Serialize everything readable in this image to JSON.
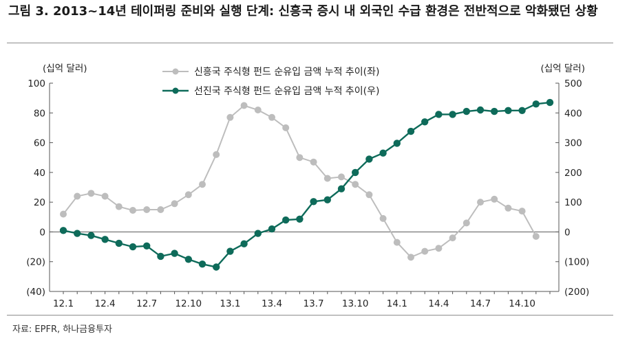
{
  "title": "그림 3. 2013~14년 테이퍼링 준비와 실행 단계: 신흥국 증시 내 외국인 수급 환경은 전반적으로 악화됐던 상황",
  "source": "자료: EPFR, 하나금융투자",
  "colors": {
    "series1": "#bdbdbd",
    "series2": "#0e6b5a"
  },
  "chart_data": {
    "type": "line",
    "title": "",
    "left_unit": "(십억 달러)",
    "right_unit": "(십억 달러)",
    "legend_position": "top-center",
    "grid": false,
    "x_tick_labels": [
      "12.1",
      "12.4",
      "12.7",
      "12.10",
      "13.1",
      "13.4",
      "13.7",
      "13.10",
      "14.1",
      "14.4",
      "14.7",
      "14.10"
    ],
    "left_axis": {
      "min": -40,
      "max": 100,
      "ticks": [
        100,
        80,
        60,
        40,
        20,
        0,
        -20,
        -40
      ],
      "tick_labels": [
        "100",
        "80",
        "60",
        "40",
        "20",
        "0",
        "(20)",
        "(40)"
      ]
    },
    "right_axis": {
      "min": -200,
      "max": 500,
      "ticks": [
        500,
        400,
        300,
        200,
        100,
        0,
        -100,
        -200
      ],
      "tick_labels": [
        "500",
        "400",
        "300",
        "200",
        "100",
        "0",
        "(100)",
        "(200)"
      ]
    },
    "categories": [
      "12.1",
      "12.2",
      "12.3",
      "12.4",
      "12.5",
      "12.6",
      "12.7",
      "12.8",
      "12.9",
      "12.10",
      "12.11",
      "12.12",
      "13.1",
      "13.2",
      "13.3",
      "13.4",
      "13.5",
      "13.6",
      "13.7",
      "13.8",
      "13.9",
      "13.10",
      "13.11",
      "13.12",
      "14.1",
      "14.2",
      "14.3",
      "14.4",
      "14.5",
      "14.6",
      "14.7",
      "14.8",
      "14.9",
      "14.10",
      "14.11",
      "14.12"
    ],
    "series": [
      {
        "name": "신흥국 주식형 펀드 순유입 금액 누적 추이(좌)",
        "axis": "left",
        "values": [
          12,
          24,
          26,
          24,
          17,
          14.5,
          15,
          15,
          19,
          25,
          32,
          52,
          77,
          85,
          82,
          77,
          70,
          50,
          47,
          36,
          37,
          32,
          25,
          9,
          -7,
          -17,
          -13,
          -11,
          -4,
          6,
          20,
          22,
          16,
          14,
          -3,
          null
        ]
      },
      {
        "name": "선진국 주식형 펀드 순유입 금액 누적 추이(우)",
        "axis": "right",
        "values": [
          5,
          -5,
          -12,
          -25,
          -38,
          -50,
          -47,
          -82,
          -72,
          -92,
          -108,
          -118,
          -65,
          -40,
          -5,
          10,
          40,
          43,
          102,
          108,
          145,
          200,
          245,
          265,
          298,
          338,
          370,
          395,
          395,
          405,
          410,
          405,
          408,
          408,
          430,
          435
        ]
      }
    ]
  }
}
